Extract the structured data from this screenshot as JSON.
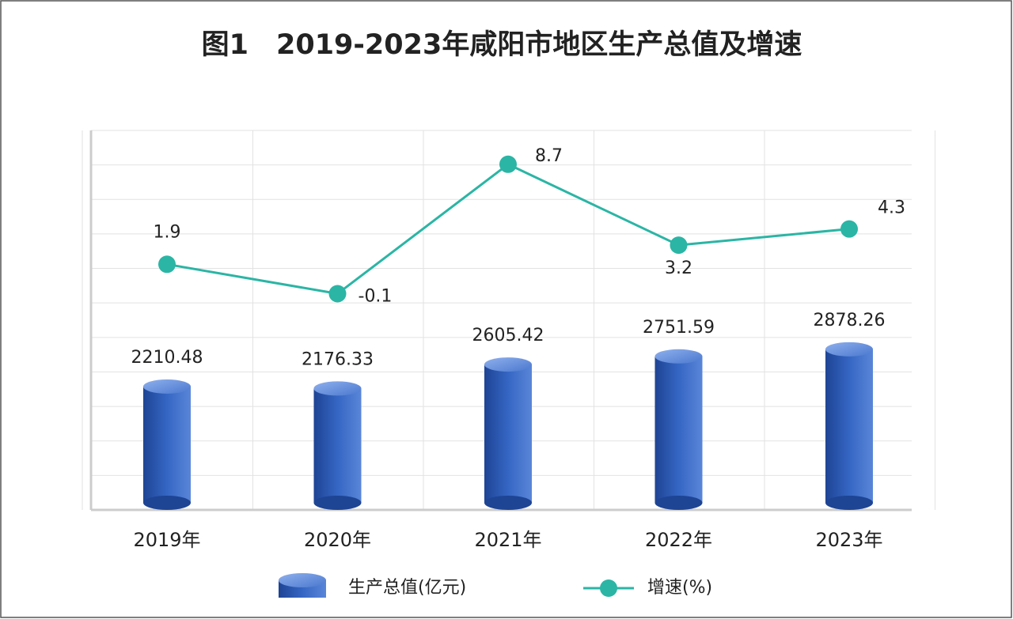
{
  "chart_data": {
    "type": "bar+line",
    "title": "图1　2019-2023年咸阳市地区生产总值及增速",
    "categories": [
      "2019年",
      "2020年",
      "2021年",
      "2022年",
      "2023年"
    ],
    "series": [
      {
        "name": "生产总值(亿元)",
        "type": "bar",
        "color": "#2f5fb3",
        "values": [
          2210.48,
          2176.33,
          2605.42,
          2751.59,
          2878.26
        ]
      },
      {
        "name": "增速(%)",
        "type": "line",
        "color": "#2bb5a5",
        "axis": "y2",
        "values": [
          1.9,
          -0.1,
          8.7,
          3.2,
          4.3
        ]
      }
    ],
    "ylim": [
      0,
      6800
    ],
    "y2lim": [
      -14.8,
      11
    ],
    "grid": true
  }
}
